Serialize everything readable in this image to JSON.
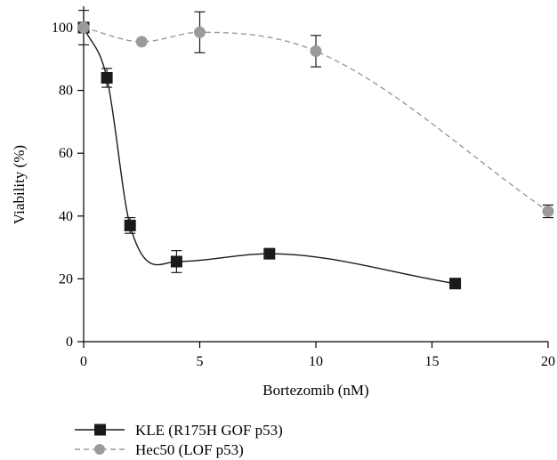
{
  "chart_data": {
    "type": "line",
    "title": "",
    "xlabel": "Bortezomib (nM)",
    "ylabel": "Viability (%)",
    "xlim": [
      0,
      20
    ],
    "ylim": [
      0,
      100
    ],
    "xticks": [
      0,
      5,
      10,
      15,
      20
    ],
    "yticks": [
      0,
      20,
      40,
      60,
      80,
      100
    ],
    "grid": false,
    "legend_position": "bottom-left",
    "series": [
      {
        "name": "KLE (R175H GOF p53)",
        "color": "#1a1a1a",
        "marker": "square",
        "line_style": "solid",
        "x": [
          0,
          1,
          2,
          4,
          8,
          16
        ],
        "y": [
          100,
          84,
          37,
          25.5,
          28,
          18.5
        ],
        "err": [
          0,
          3,
          2.5,
          3.5,
          0,
          0
        ]
      },
      {
        "name": "Hec50 (LOF p53)",
        "color": "#9a9a9a",
        "marker": "circle",
        "line_style": "dashed",
        "x": [
          0,
          2.5,
          5,
          10,
          20
        ],
        "y": [
          100,
          95.5,
          98.5,
          92.5,
          41.5
        ],
        "err": [
          5.5,
          0,
          6.5,
          5,
          2
        ]
      }
    ]
  }
}
